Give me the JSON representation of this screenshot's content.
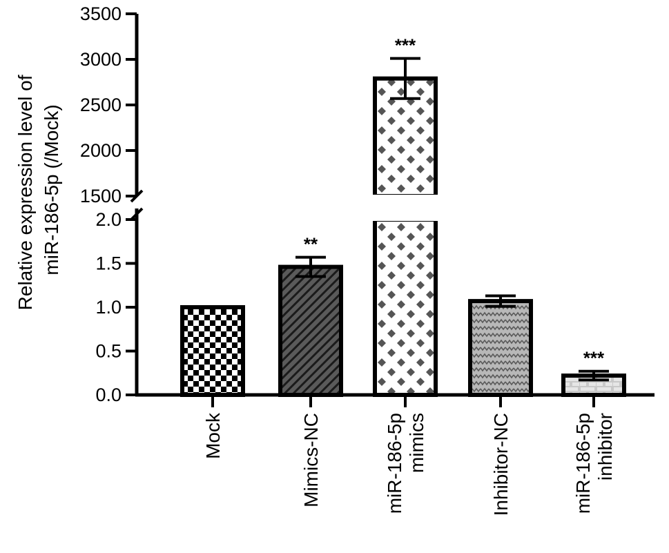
{
  "chart_data": {
    "type": "bar",
    "ylabel": "Relative expression level of miR-186-5p (/Mock)",
    "ylabel_lines": [
      "Relative expression level of",
      "miR-186-5p (/Mock)"
    ],
    "axis_break": {
      "lower_range": [
        0,
        2.0
      ],
      "upper_range": [
        1500,
        3500
      ]
    },
    "y_ticks_lower": [
      "0.0",
      "0.5",
      "1.0",
      "1.5",
      "2.0"
    ],
    "y_ticks_upper": [
      "1500",
      "2000",
      "2500",
      "3000",
      "3500"
    ],
    "categories": [
      {
        "lines": [
          "Mock"
        ],
        "pattern": "checker"
      },
      {
        "lines": [
          "Mimics-NC"
        ],
        "pattern": "diagonal"
      },
      {
        "lines": [
          "miR-186-5p",
          "mimics"
        ],
        "pattern": "diamond"
      },
      {
        "lines": [
          "Inhibitor-NC"
        ],
        "pattern": "wave"
      },
      {
        "lines": [
          "miR-186-5p",
          "inhibitor"
        ],
        "pattern": "brick"
      }
    ],
    "values": [
      1.0,
      1.46,
      2790,
      1.07,
      0.22
    ],
    "errors": [
      0,
      0.11,
      220,
      0.06,
      0.05
    ],
    "significance": [
      "",
      "**",
      "***",
      "",
      "***"
    ],
    "colors": {
      "axis": "#000000",
      "fill_dark": "#333333",
      "fill_light": "#bfbfbf"
    }
  }
}
